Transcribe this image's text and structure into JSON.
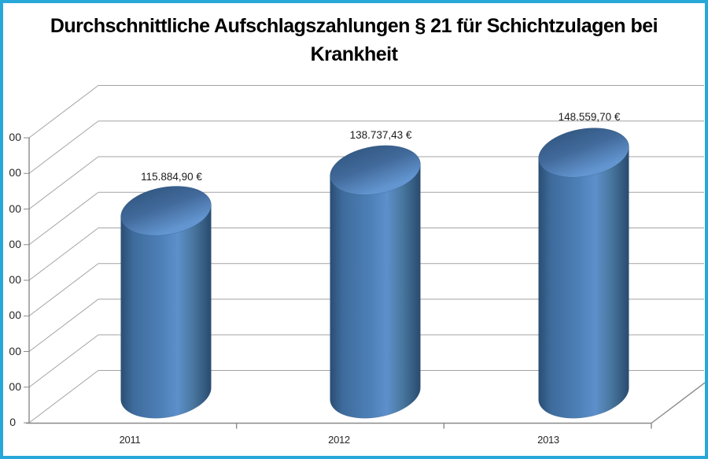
{
  "title": {
    "line1": "Durchschnittliche Aufschlagszahlungen § 21 für Schichtzulagen bei",
    "line2": "Krankheit"
  },
  "chart_data": {
    "type": "bar",
    "style": "3d-cylinder",
    "title": "Durchschnittliche Aufschlagszahlungen § 21 für Schichtzulagen bei Krankheit",
    "categories": [
      "2011",
      "2012",
      "2013"
    ],
    "values": [
      115884.9,
      138737.43,
      148559.7
    ],
    "data_labels": [
      "115.884,90 €",
      "138.737,43 €",
      "148.559,70 €"
    ],
    "xlabel": "",
    "ylabel": "",
    "ylim": [
      0,
      160000
    ],
    "y_tick_step": 20000,
    "y_tick_labels_visible": [
      "00",
      "00",
      "00",
      "00",
      "00",
      "00",
      "00",
      "00",
      "0"
    ],
    "grid": true,
    "legend": false,
    "colors": {
      "bar_main": "#4E80B8",
      "bar_dark": "#2B4E73",
      "bar_light": "#5D90CB",
      "gridline": "#A3A3A3",
      "axis": "#8A8A8A",
      "frame_border": "#28A8D8",
      "background": "#FFFFFF",
      "title_text": "#000000",
      "label_text": "#1C1C1C"
    }
  }
}
